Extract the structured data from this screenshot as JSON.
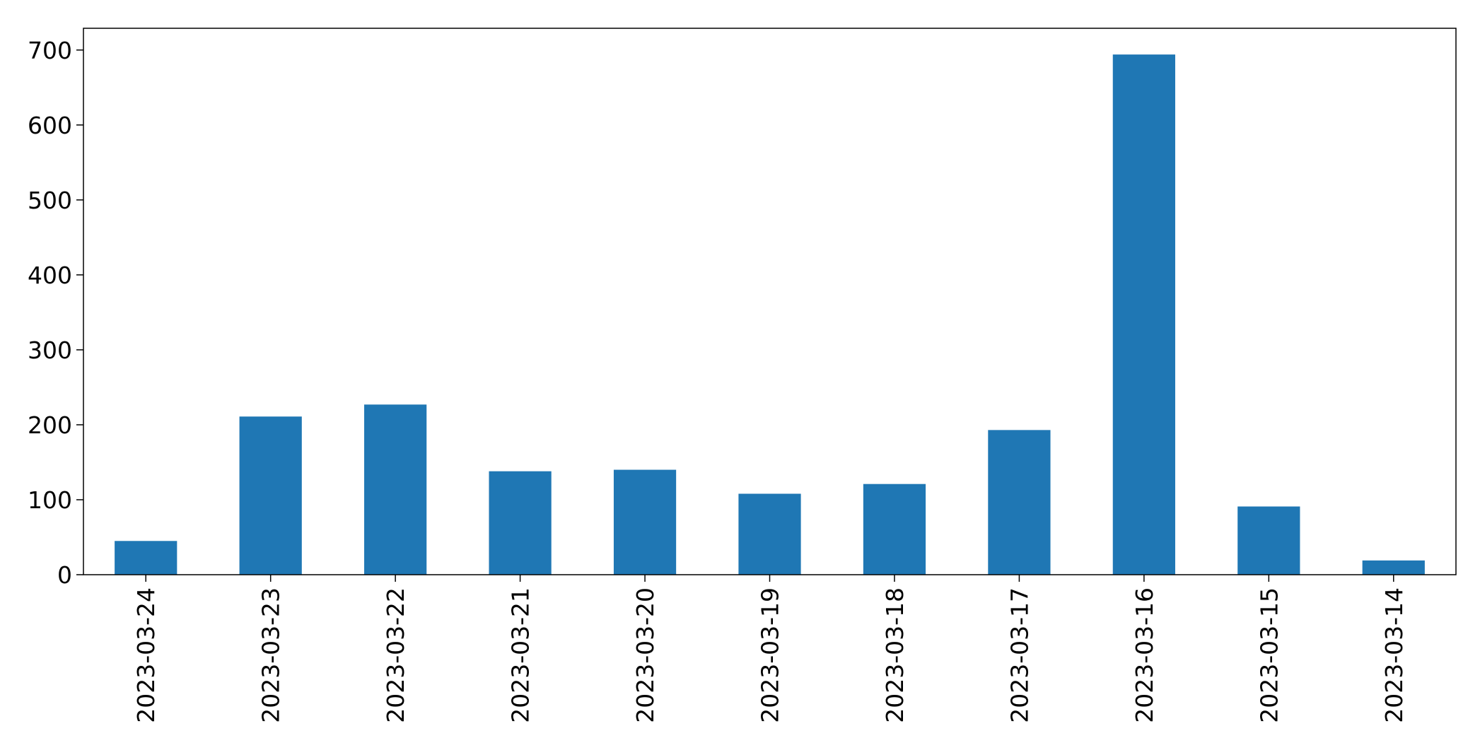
{
  "chart_data": {
    "type": "bar",
    "title": "",
    "xlabel": "",
    "ylabel": "",
    "categories": [
      "2023-03-24",
      "2023-03-23",
      "2023-03-22",
      "2023-03-21",
      "2023-03-20",
      "2023-03-19",
      "2023-03-18",
      "2023-03-17",
      "2023-03-16",
      "2023-03-15",
      "2023-03-14"
    ],
    "values": [
      45,
      211,
      227,
      138,
      140,
      108,
      121,
      193,
      694,
      91,
      19
    ],
    "ylim": [
      0,
      729
    ],
    "yticks": [
      0,
      100,
      200,
      300,
      400,
      500,
      600,
      700
    ],
    "bar_color": "#1f77b4",
    "grid": false,
    "legend": "none"
  }
}
